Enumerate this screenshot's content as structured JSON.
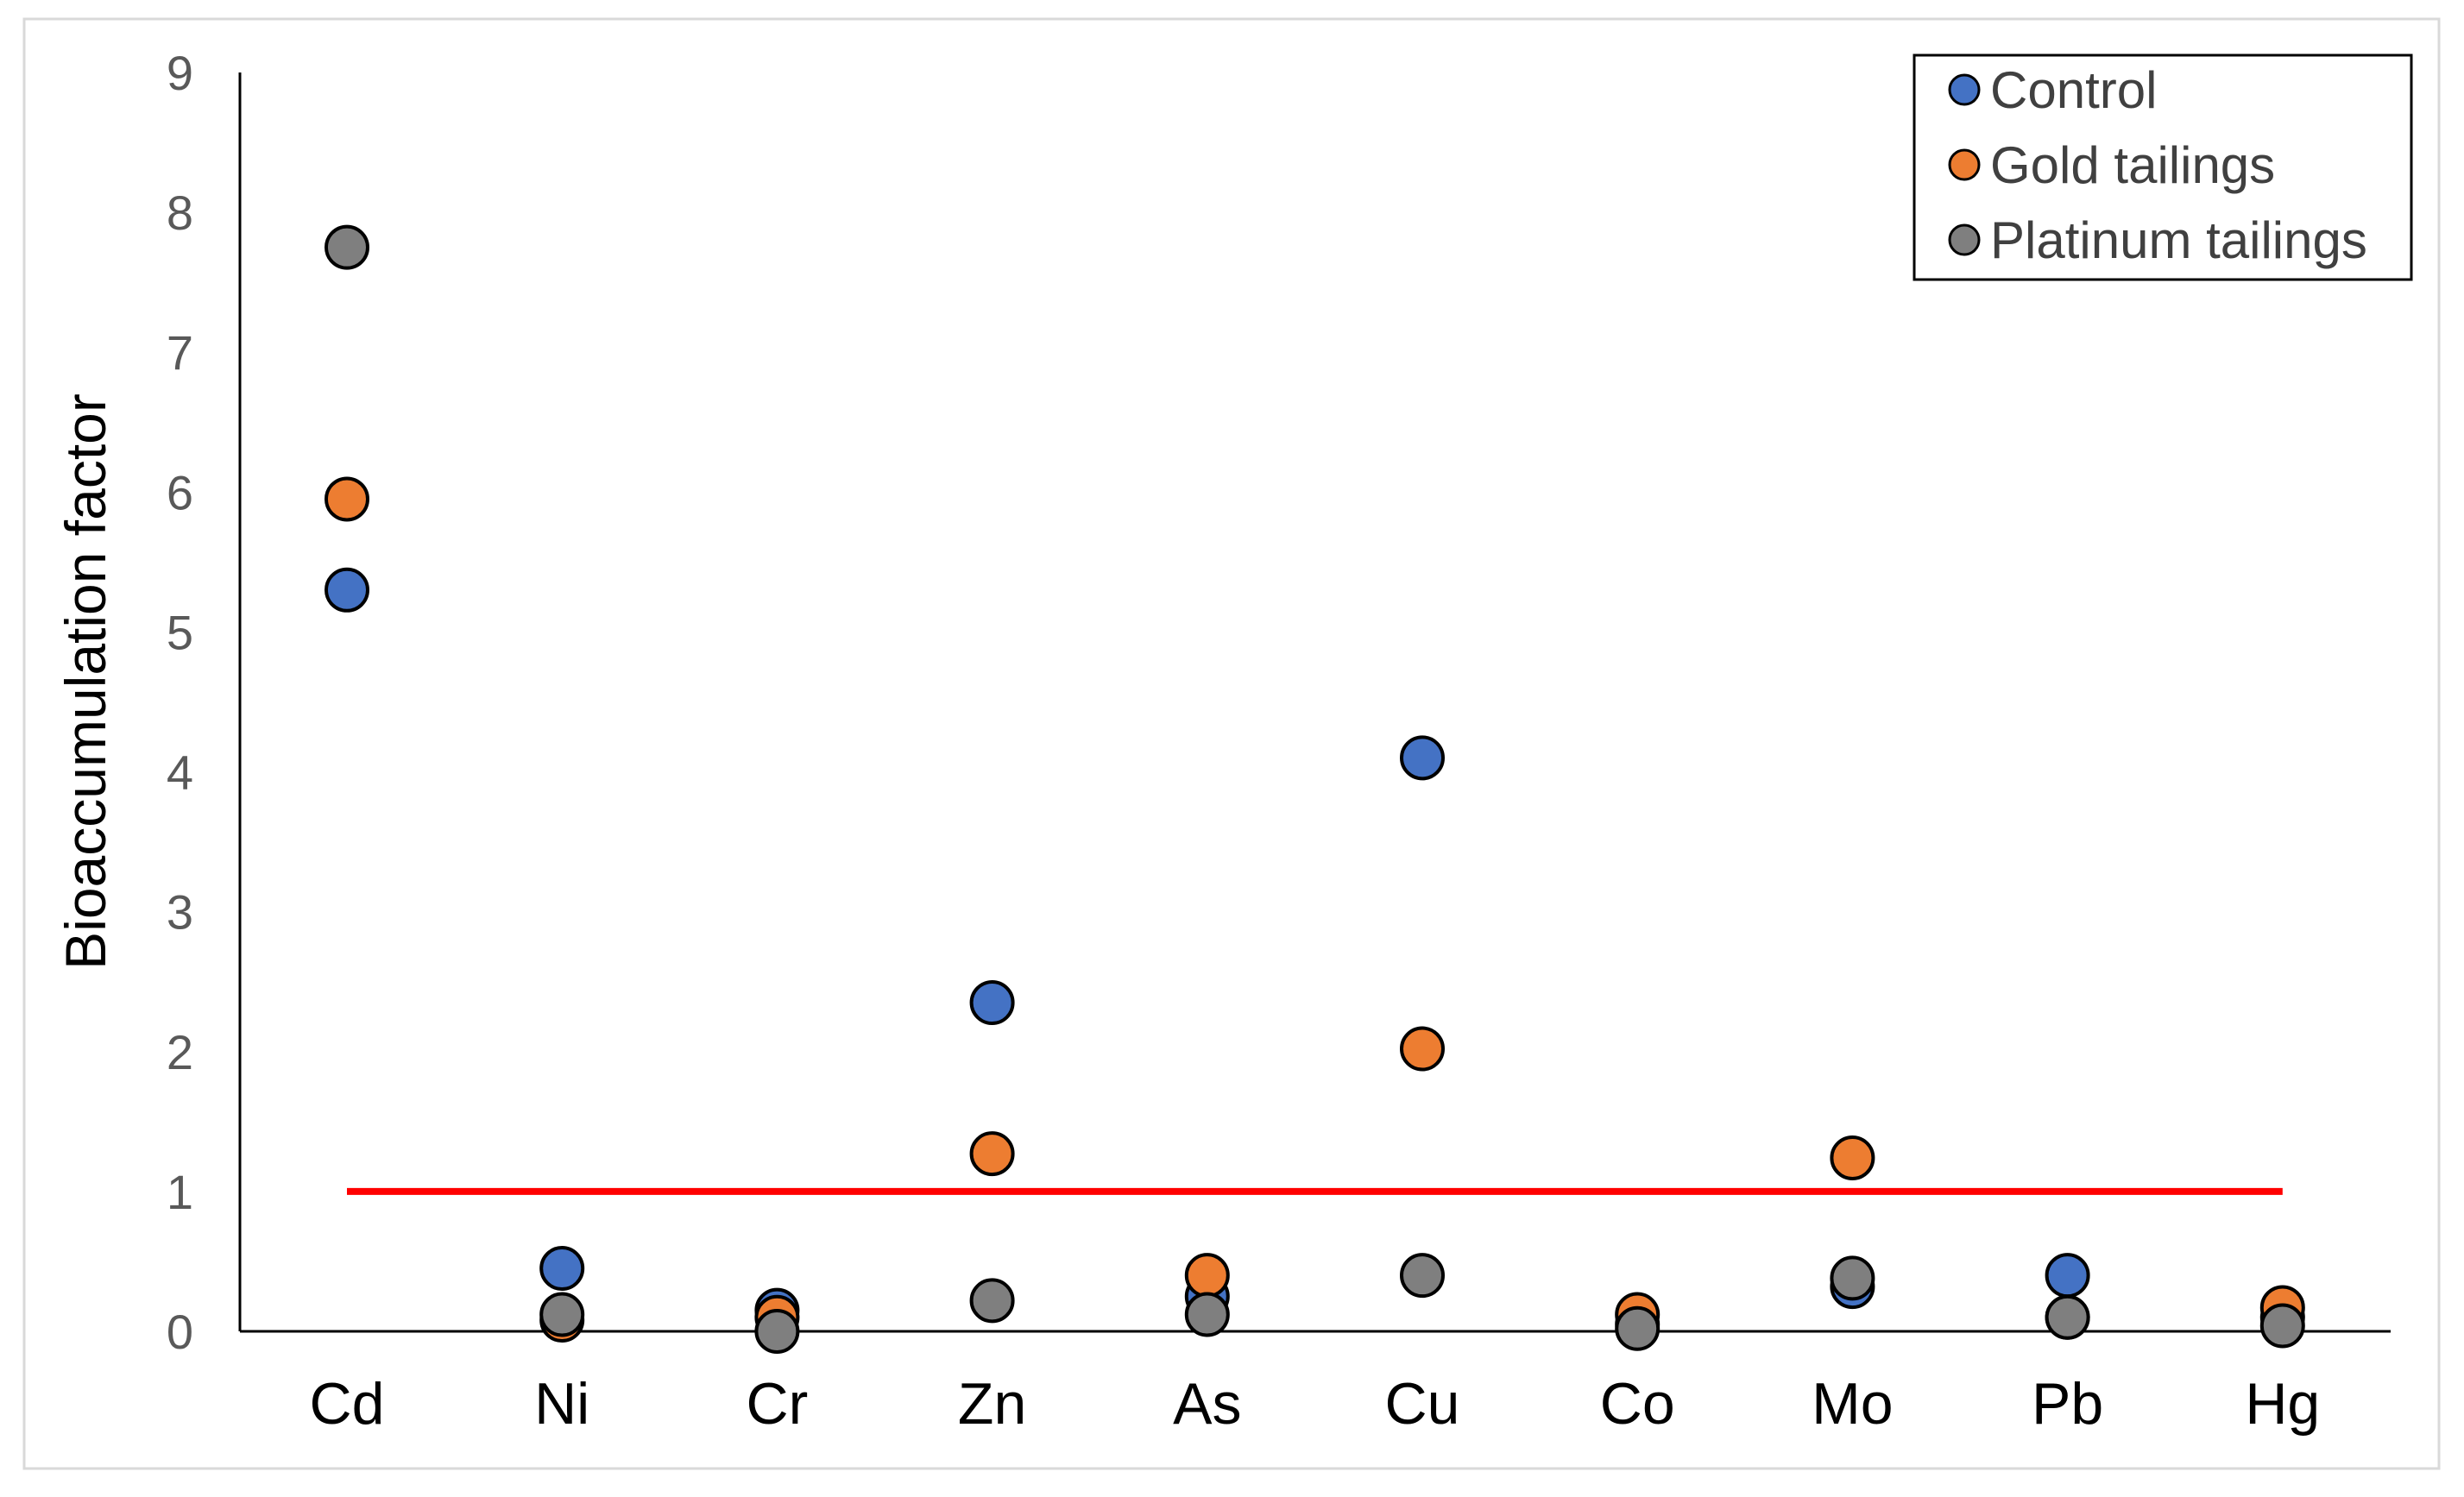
{
  "chart_data": {
    "type": "scatter",
    "title": "",
    "xlabel": "",
    "ylabel": "Bioaccumulation factor",
    "categories": [
      "Cd",
      "Ni",
      "Cr",
      "Zn",
      "As",
      "Cu",
      "Co",
      "Mo",
      "Pb",
      "Hg"
    ],
    "ylim": [
      0,
      9
    ],
    "yticks": [
      0,
      1,
      2,
      3,
      4,
      5,
      6,
      7,
      8,
      9
    ],
    "grid": false,
    "legend_position": "top-right",
    "series": [
      {
        "name": "Control",
        "color": "#4472C4",
        "values": [
          5.3,
          0.45,
          0.15,
          2.35,
          0.25,
          4.1,
          0.05,
          0.32,
          0.4,
          0.1
        ]
      },
      {
        "name": "Gold tailings",
        "color": "#ED7D31",
        "values": [
          5.95,
          0.08,
          0.1,
          1.27,
          0.4,
          2.02,
          0.12,
          1.24,
          0.1,
          0.17
        ]
      },
      {
        "name": "Platinum tailings",
        "color": "#7F7F7F",
        "values": [
          7.75,
          0.12,
          0.0,
          0.22,
          0.12,
          0.4,
          0.02,
          0.38,
          0.1,
          0.04
        ]
      }
    ],
    "reference_line": {
      "value": 1,
      "color": "#FF0000"
    }
  }
}
